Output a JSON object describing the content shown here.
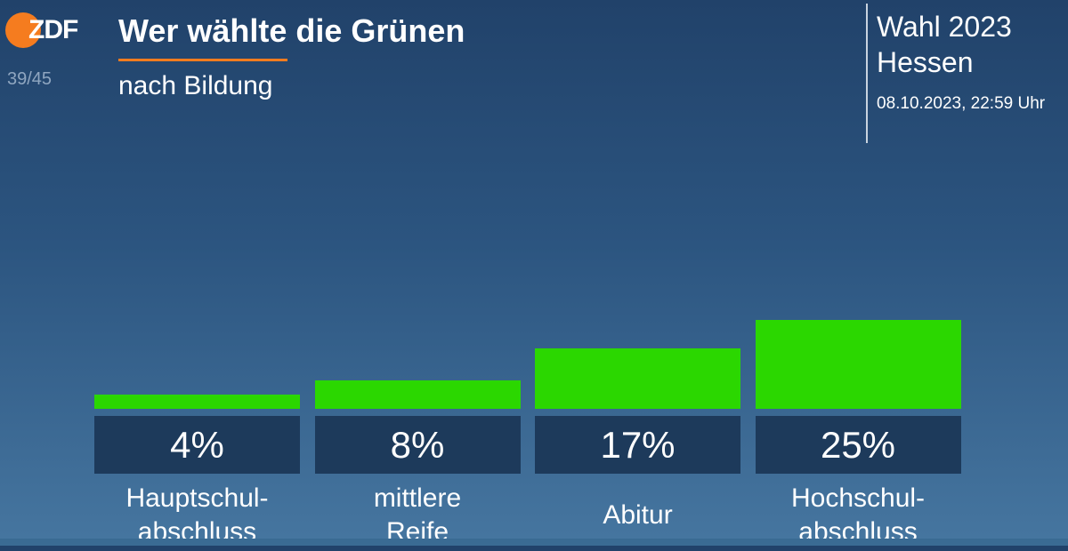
{
  "chart_data": {
    "type": "bar",
    "logo": "ZDF",
    "page_counter": "39/45",
    "title": "Wer wählte die Grünen",
    "subtitle": "nach Bildung",
    "election": "Wahl 2023",
    "region": "Hessen",
    "timestamp": "08.10.2023, 22:59 Uhr",
    "categories": [
      "Hauptschul-\nabschluss",
      "mittlere\nReife",
      "Abitur",
      "Hochschul-\nabschluss"
    ],
    "values": [
      4,
      8,
      17,
      25
    ],
    "value_labels": [
      "4%",
      "8%",
      "17%",
      "25%"
    ],
    "color": "#2bd700"
  }
}
